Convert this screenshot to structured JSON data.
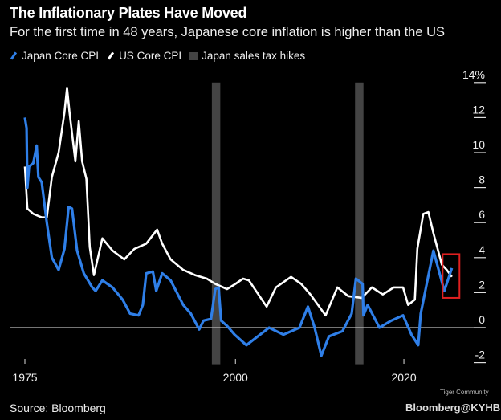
{
  "chart_data": {
    "type": "line",
    "title": "The Inflationary Plates Have Moved",
    "subtitle": "For the first time in 48 years, Japanese core inflation is higher than the US",
    "xlabel": "",
    "ylabel": "",
    "xlim": [
      1975,
      2027
    ],
    "ylim": [
      -2,
      14
    ],
    "x_ticks": [
      1975,
      2000,
      2020
    ],
    "x_tick_labels": [
      "1975",
      "2000",
      "2020"
    ],
    "y_ticks": [
      14,
      12,
      10,
      8,
      6,
      4,
      2,
      0,
      -2
    ],
    "y_tick_labels": [
      "14%",
      "12",
      "10",
      "8",
      "6",
      "4",
      "2",
      "0",
      "-2"
    ],
    "y_axis_side": "right",
    "grid": false,
    "zero_line": true,
    "legend_placement": "top-left",
    "legend": [
      "Japan Core CPI",
      "US Core CPI",
      "Japan sales tax hikes"
    ],
    "shaded_periods": [
      {
        "name": "Japan sales tax hikes",
        "start": 1997.2,
        "end": 1998.2,
        "color": "#444444"
      },
      {
        "name": "Japan sales tax hikes",
        "start": 2014.2,
        "end": 2015.2,
        "color": "#444444"
      }
    ],
    "highlight_box": {
      "x": [
        2024.6,
        2026.6
      ],
      "y": [
        1.7,
        4.2
      ],
      "color": "#e02020"
    },
    "series": [
      {
        "name": "Japan Core CPI",
        "color": "#2f7fe8",
        "x": [
          1975.0,
          1975.2,
          1975.3,
          1975.5,
          1976.0,
          1976.4,
          1976.6,
          1977.0,
          1977.6,
          1978.2,
          1979.0,
          1979.7,
          1980.2,
          1980.6,
          1981.2,
          1982.0,
          1983.0,
          1983.4,
          1984.2,
          1985.4,
          1986.6,
          1987.5,
          1988.5,
          1989.0,
          1989.4,
          1990.2,
          1990.6,
          1991.3,
          1992.3,
          1993.8,
          1994.7,
          1995.7,
          1996.2,
          1997.1,
          1997.6,
          1998.0,
          1998.3,
          1999.0,
          1999.9,
          2001.3,
          2004.0,
          2005.7,
          2007.6,
          2008.6,
          2009.4,
          2010.2,
          2011.1,
          2012.7,
          2013.8,
          2014.3,
          2015.1,
          2015.2,
          2015.7,
          2017.1,
          2018.5,
          2019.9,
          2020.9,
          2021.7,
          2022.0,
          2023.5,
          2024.8,
          2025.7
        ],
        "y": [
          12.0,
          11.4,
          8.0,
          9.2,
          9.4,
          10.4,
          8.6,
          8.3,
          6.0,
          4.0,
          3.3,
          4.5,
          6.9,
          6.8,
          4.4,
          3.1,
          2.3,
          2.1,
          2.7,
          2.3,
          1.6,
          0.8,
          0.7,
          1.3,
          3.1,
          3.2,
          2.1,
          3.1,
          2.7,
          1.3,
          0.8,
          -0.1,
          0.4,
          0.5,
          2.2,
          2.3,
          0.4,
          0.1,
          -0.4,
          -1.0,
          0.0,
          -0.4,
          0.0,
          1.2,
          0.0,
          -1.6,
          -0.5,
          -0.2,
          0.8,
          2.8,
          2.5,
          0.7,
          1.3,
          0.0,
          0.4,
          0.7,
          -0.4,
          -1.0,
          0.8,
          4.4,
          2.1,
          3.4
        ]
      },
      {
        "name": "US Core CPI",
        "color": "#ffffff",
        "x": [
          1975.0,
          1975.3,
          1976.0,
          1977.0,
          1977.6,
          1978.2,
          1979.0,
          1979.7,
          1980.0,
          1980.3,
          1981.0,
          1981.4,
          1981.8,
          1982.3,
          1982.7,
          1983.2,
          1984.2,
          1985.4,
          1986.8,
          1988.0,
          1989.4,
          1990.7,
          1991.3,
          1992.3,
          1993.8,
          1995.2,
          1996.6,
          1997.6,
          1999.0,
          2000.0,
          2000.9,
          2001.6,
          2003.7,
          2004.8,
          2006.6,
          2007.8,
          2008.9,
          2010.7,
          2012.1,
          2013.4,
          2015.0,
          2016.2,
          2017.5,
          2018.8,
          2019.9,
          2020.5,
          2021.3,
          2021.6,
          2022.3,
          2022.9,
          2023.5,
          2024.5,
          2025.1,
          2025.7
        ],
        "y": [
          9.2,
          6.8,
          6.5,
          6.3,
          6.3,
          8.6,
          10.0,
          12.3,
          13.7,
          12.3,
          9.5,
          11.8,
          9.5,
          8.5,
          4.6,
          3.0,
          5.1,
          4.4,
          3.9,
          4.5,
          4.8,
          5.6,
          4.8,
          3.9,
          3.3,
          3.0,
          2.8,
          2.5,
          2.2,
          2.5,
          2.8,
          2.7,
          1.2,
          2.3,
          2.9,
          2.5,
          1.9,
          0.7,
          2.3,
          1.8,
          1.7,
          2.3,
          1.9,
          2.3,
          2.3,
          1.3,
          1.6,
          4.5,
          6.5,
          6.6,
          5.4,
          3.6,
          3.3,
          2.9
        ]
      }
    ]
  },
  "footer": {
    "source": "Source: Bloomberg",
    "watermark_community": "Tiger Community",
    "watermark_brand": "Bloomberg@KYHBKO"
  }
}
